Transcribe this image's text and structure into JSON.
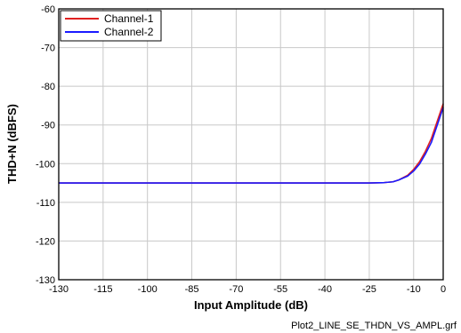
{
  "chart_data": {
    "type": "line",
    "title": "",
    "xlabel": "Input Amplitude (dB)",
    "ylabel": "THD+N (dBFS)",
    "xlim": [
      -130,
      0
    ],
    "ylim": [
      -130,
      -60
    ],
    "xticks": [
      -130,
      -115,
      -100,
      -85,
      -70,
      -55,
      -40,
      -25,
      -10,
      0
    ],
    "yticks": [
      -60,
      -70,
      -80,
      -90,
      -100,
      -110,
      -120,
      -130
    ],
    "grid": true,
    "legend_position": "top-left",
    "series": [
      {
        "name": "Channel-1",
        "color": "#e02020",
        "x": [
          -130,
          -120,
          -110,
          -100,
          -90,
          -80,
          -70,
          -60,
          -50,
          -40,
          -30,
          -25,
          -20,
          -17,
          -15,
          -12,
          -10,
          -8,
          -6,
          -4,
          -2,
          0
        ],
        "y": [
          -105,
          -105,
          -105,
          -105,
          -105,
          -105,
          -105,
          -105,
          -105,
          -105,
          -105,
          -105,
          -104.9,
          -104.7,
          -104.2,
          -103,
          -101.5,
          -99.5,
          -96.8,
          -93.5,
          -89,
          -84.5
        ]
      },
      {
        "name": "Channel-2",
        "color": "#1a1aff",
        "x": [
          -130,
          -120,
          -110,
          -100,
          -90,
          -80,
          -70,
          -60,
          -50,
          -40,
          -30,
          -25,
          -20,
          -17,
          -15,
          -12,
          -10,
          -8,
          -6,
          -4,
          -2,
          0
        ],
        "y": [
          -105,
          -105,
          -105,
          -105,
          -105,
          -105,
          -105,
          -105,
          -105,
          -105,
          -105,
          -105,
          -104.9,
          -104.7,
          -104.2,
          -103.2,
          -101.9,
          -100.1,
          -97.5,
          -94.5,
          -90,
          -85.5
        ]
      }
    ]
  },
  "footer": {
    "filename": "Plot2_LINE_SE_THDN_VS_AMPL.grf"
  }
}
